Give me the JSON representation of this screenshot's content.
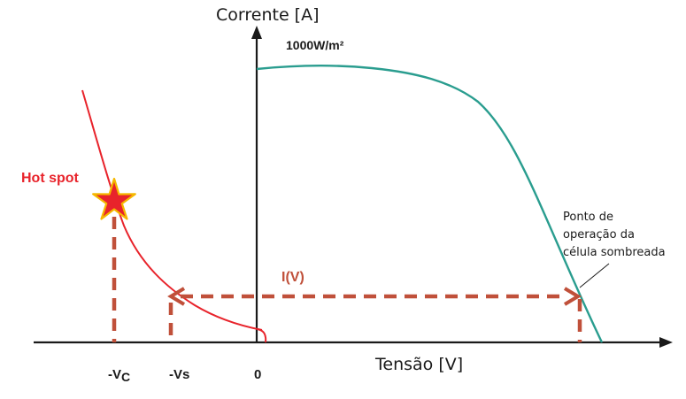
{
  "axes": {
    "y_label": "Corrente [A]",
    "x_label": "Tensão [V]"
  },
  "curve_label": "1000W/m²",
  "hot_spot_label": "Hot spot",
  "iv_label": "I(V)",
  "annotation": {
    "line1": "Ponto de",
    "line2": "operação da",
    "line3": "célula sombreada"
  },
  "ticks": {
    "vc_main": "-V",
    "vc_sub": "C",
    "vs": "-Vs",
    "zero": "0"
  },
  "colors": {
    "axis": "#1a1a1a",
    "module_curve": "#2a9d8f",
    "reverse_curve": "#e8232b",
    "dashed": "#c0503a",
    "hot_spot_text": "#e8232b",
    "iv_text": "#c0503a",
    "star_fill": "#e8232b",
    "star_stroke": "#f5b800"
  }
}
